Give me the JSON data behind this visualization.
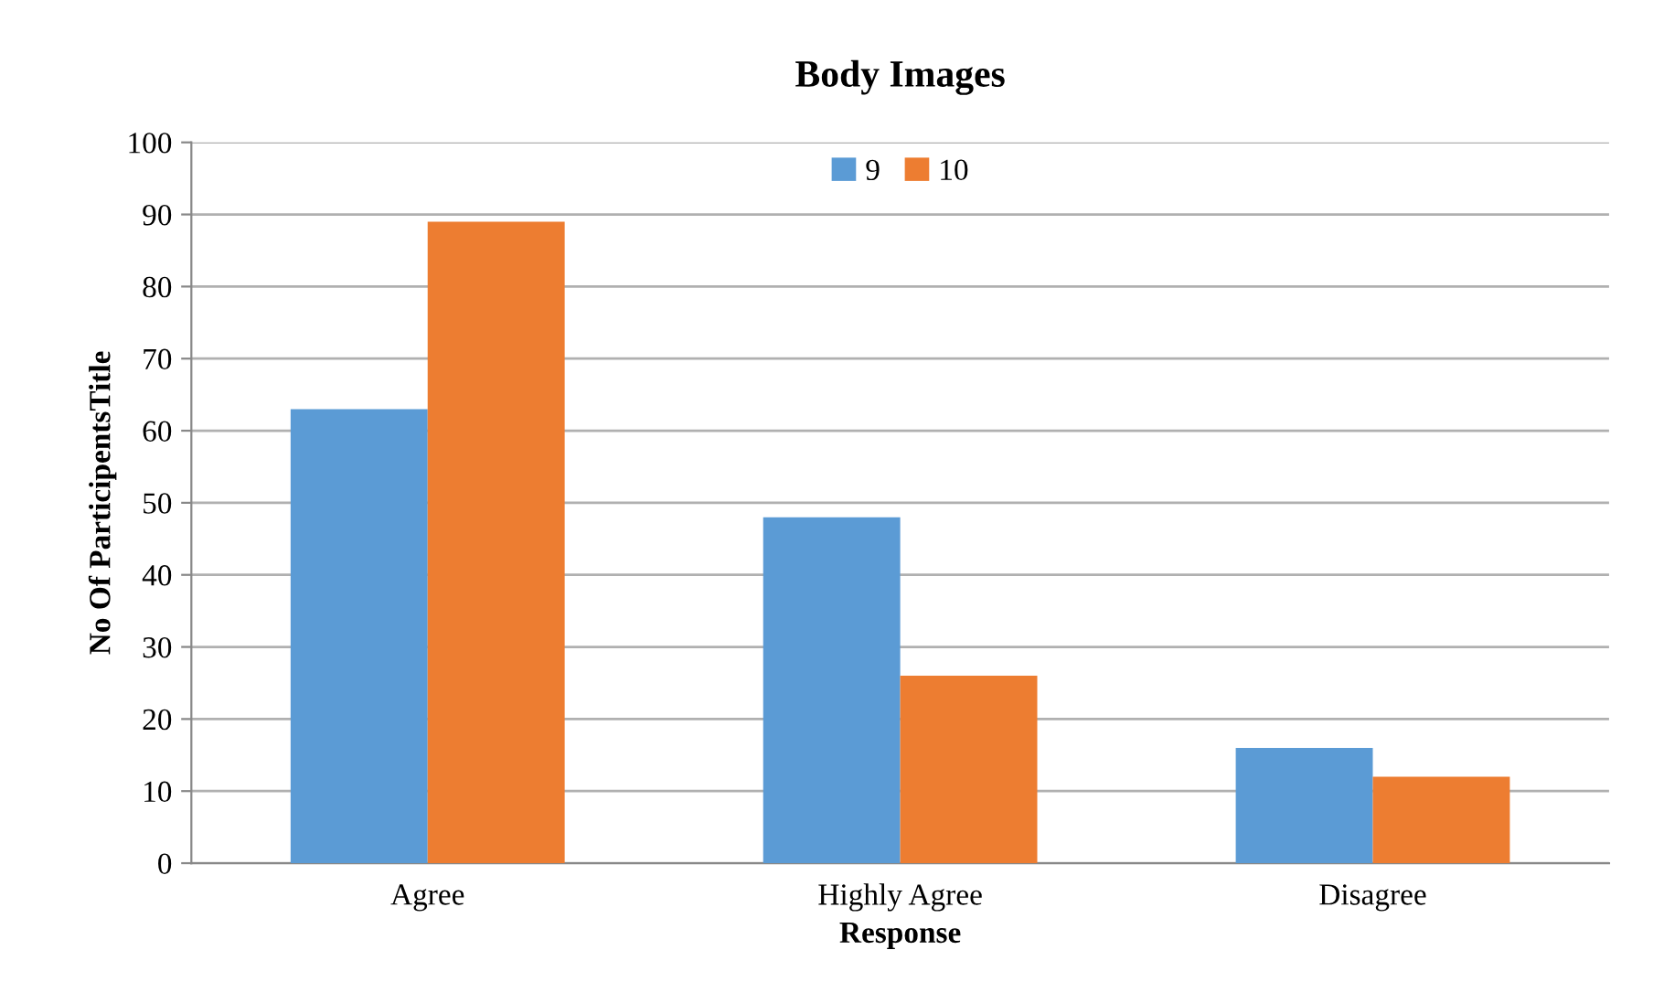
{
  "chart_data": {
    "type": "bar",
    "title": "Body Images",
    "xlabel": "Response",
    "ylabel": "No Of ParticipentsTitle",
    "categories": [
      "Agree",
      "Highly Agree",
      "Disagree"
    ],
    "series": [
      {
        "name": "9",
        "color": "#5b9bd5",
        "values": [
          63,
          48,
          16
        ]
      },
      {
        "name": "10",
        "color": "#ed7d31",
        "values": [
          89,
          26,
          12
        ]
      }
    ],
    "ylim": [
      0,
      100
    ],
    "yticks": [
      0,
      10,
      20,
      30,
      40,
      50,
      60,
      70,
      80,
      90,
      100
    ],
    "grid": "y",
    "legend": "top"
  }
}
